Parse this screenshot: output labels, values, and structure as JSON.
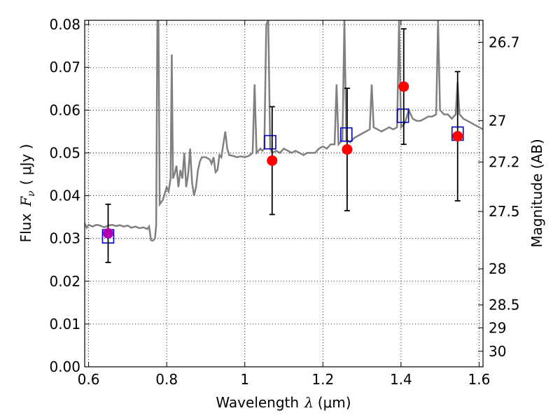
{
  "chart_data": {
    "type": "line",
    "xlabel": "Wavelength",
    "xlabel_symbol": "λ",
    "xlabel_unit": "(μm)",
    "ylabel": "Flux",
    "ylabel_symbol": "F",
    "ylabel_subscript": "ν",
    "ylabel_unit": "( μJy )",
    "y2label": "Magnitude (AB)",
    "xlim": [
      0.59,
      1.61
    ],
    "ylim": [
      0.0,
      0.081
    ],
    "grid": true,
    "x_ticks": [
      {
        "value": 0.6,
        "label": "0.6"
      },
      {
        "value": 0.8,
        "label": "0.8"
      },
      {
        "value": 1.0,
        "label": "1"
      },
      {
        "value": 1.2,
        "label": "1.2"
      },
      {
        "value": 1.4,
        "label": "1.4"
      },
      {
        "value": 1.6,
        "label": "1.6"
      }
    ],
    "y_ticks": [
      {
        "value": 0.0,
        "label": "0.00"
      },
      {
        "value": 0.01,
        "label": "0.01"
      },
      {
        "value": 0.02,
        "label": "0.02"
      },
      {
        "value": 0.03,
        "label": "0.03"
      },
      {
        "value": 0.04,
        "label": "0.04"
      },
      {
        "value": 0.05,
        "label": "0.05"
      },
      {
        "value": 0.06,
        "label": "0.06"
      },
      {
        "value": 0.07,
        "label": "0.07"
      },
      {
        "value": 0.08,
        "label": "0.08"
      }
    ],
    "y2_ticks": [
      {
        "magnitude": 26.7,
        "label": "26.7"
      },
      {
        "magnitude": 27.0,
        "label": "27"
      },
      {
        "magnitude": 27.2,
        "label": "27.2"
      },
      {
        "magnitude": 27.5,
        "label": "27.5"
      },
      {
        "magnitude": 28.0,
        "label": "28"
      },
      {
        "magnitude": 28.5,
        "label": "28.5"
      },
      {
        "magnitude": 29.0,
        "label": "29"
      },
      {
        "magnitude": 30.0,
        "label": "30"
      }
    ],
    "model_spectrum": {
      "color": "#808080",
      "points": [
        [
          0.59,
          0.0335
        ],
        [
          0.595,
          0.0325
        ],
        [
          0.6,
          0.0332
        ],
        [
          0.61,
          0.0328
        ],
        [
          0.62,
          0.0332
        ],
        [
          0.63,
          0.033
        ],
        [
          0.64,
          0.0326
        ],
        [
          0.65,
          0.033
        ],
        [
          0.66,
          0.0332
        ],
        [
          0.67,
          0.0329
        ],
        [
          0.68,
          0.0331
        ],
        [
          0.69,
          0.0328
        ],
        [
          0.7,
          0.033
        ],
        [
          0.71,
          0.0325
        ],
        [
          0.72,
          0.0328
        ],
        [
          0.73,
          0.0324
        ],
        [
          0.74,
          0.0326
        ],
        [
          0.75,
          0.0322
        ],
        [
          0.755,
          0.0328
        ],
        [
          0.76,
          0.0296
        ],
        [
          0.765,
          0.0295
        ],
        [
          0.77,
          0.03
        ],
        [
          0.773,
          0.033
        ],
        [
          0.776,
          0.081
        ],
        [
          0.779,
          0.081
        ],
        [
          0.782,
          0.038
        ],
        [
          0.79,
          0.039
        ],
        [
          0.8,
          0.042
        ],
        [
          0.805,
          0.041
        ],
        [
          0.81,
          0.044
        ],
        [
          0.813,
          0.073
        ],
        [
          0.816,
          0.044
        ],
        [
          0.82,
          0.045
        ],
        [
          0.825,
          0.047
        ],
        [
          0.83,
          0.042
        ],
        [
          0.835,
          0.046
        ],
        [
          0.84,
          0.044
        ],
        [
          0.845,
          0.05
        ],
        [
          0.85,
          0.042
        ],
        [
          0.855,
          0.045
        ],
        [
          0.86,
          0.051
        ],
        [
          0.865,
          0.043
        ],
        [
          0.87,
          0.04
        ],
        [
          0.875,
          0.042
        ],
        [
          0.88,
          0.046
        ],
        [
          0.885,
          0.048
        ],
        [
          0.89,
          0.049
        ],
        [
          0.9,
          0.049
        ],
        [
          0.91,
          0.0485
        ],
        [
          0.915,
          0.0475
        ],
        [
          0.92,
          0.049
        ],
        [
          0.925,
          0.0455
        ],
        [
          0.93,
          0.046
        ],
        [
          0.935,
          0.0495
        ],
        [
          0.94,
          0.049
        ],
        [
          0.945,
          0.052
        ],
        [
          0.95,
          0.055
        ],
        [
          0.955,
          0.051
        ],
        [
          0.96,
          0.0495
        ],
        [
          0.97,
          0.0493
        ],
        [
          0.98,
          0.049
        ],
        [
          0.99,
          0.0492
        ],
        [
          1.0,
          0.049
        ],
        [
          1.01,
          0.0493
        ],
        [
          1.02,
          0.05
        ],
        [
          1.025,
          0.066
        ],
        [
          1.03,
          0.05
        ],
        [
          1.04,
          0.051
        ],
        [
          1.045,
          0.0505
        ],
        [
          1.05,
          0.051
        ],
        [
          1.055,
          0.08
        ],
        [
          1.06,
          0.081
        ],
        [
          1.065,
          0.051
        ],
        [
          1.07,
          0.05
        ],
        [
          1.08,
          0.0505
        ],
        [
          1.09,
          0.05
        ],
        [
          1.1,
          0.051
        ],
        [
          1.11,
          0.0505
        ],
        [
          1.12,
          0.05
        ],
        [
          1.13,
          0.0505
        ],
        [
          1.14,
          0.05
        ],
        [
          1.15,
          0.0495
        ],
        [
          1.16,
          0.05
        ],
        [
          1.17,
          0.05
        ],
        [
          1.18,
          0.05
        ],
        [
          1.19,
          0.051
        ],
        [
          1.2,
          0.0515
        ],
        [
          1.21,
          0.051
        ],
        [
          1.22,
          0.052
        ],
        [
          1.23,
          0.052
        ],
        [
          1.235,
          0.066
        ],
        [
          1.24,
          0.052
        ],
        [
          1.25,
          0.053
        ],
        [
          1.255,
          0.081
        ],
        [
          1.26,
          0.053
        ],
        [
          1.27,
          0.0525
        ],
        [
          1.28,
          0.0535
        ],
        [
          1.29,
          0.054
        ],
        [
          1.3,
          0.0545
        ],
        [
          1.31,
          0.055
        ],
        [
          1.32,
          0.0555
        ],
        [
          1.325,
          0.066
        ],
        [
          1.33,
          0.056
        ],
        [
          1.34,
          0.0555
        ],
        [
          1.35,
          0.055
        ],
        [
          1.36,
          0.0555
        ],
        [
          1.37,
          0.056
        ],
        [
          1.38,
          0.0555
        ],
        [
          1.39,
          0.056
        ],
        [
          1.395,
          0.081
        ],
        [
          1.4,
          0.056
        ],
        [
          1.41,
          0.057
        ],
        [
          1.42,
          0.06
        ],
        [
          1.43,
          0.058
        ],
        [
          1.44,
          0.0575
        ],
        [
          1.45,
          0.0575
        ],
        [
          1.46,
          0.058
        ],
        [
          1.47,
          0.0585
        ],
        [
          1.48,
          0.0585
        ],
        [
          1.49,
          0.059
        ],
        [
          1.495,
          0.081
        ],
        [
          1.5,
          0.06
        ],
        [
          1.51,
          0.059
        ],
        [
          1.52,
          0.059
        ],
        [
          1.53,
          0.058
        ],
        [
          1.54,
          0.059
        ],
        [
          1.545,
          0.0665
        ],
        [
          1.55,
          0.059
        ],
        [
          1.56,
          0.058
        ],
        [
          1.57,
          0.0575
        ],
        [
          1.58,
          0.057
        ],
        [
          1.59,
          0.0565
        ],
        [
          1.6,
          0.056
        ],
        [
          1.61,
          0.0555
        ]
      ]
    },
    "model_photometry": {
      "marker": "open-square",
      "color": "#0000cc",
      "points": [
        {
          "x": 0.65,
          "y": 0.0305
        },
        {
          "x": 1.065,
          "y": 0.0525
        },
        {
          "x": 1.26,
          "y": 0.0543
        },
        {
          "x": 1.405,
          "y": 0.0587
        },
        {
          "x": 1.545,
          "y": 0.0545
        }
      ]
    },
    "observed": {
      "marker": "filled-circle",
      "color": "#ff0000",
      "errorbar_color": "#000000",
      "points": [
        {
          "x": 0.65,
          "y": 0.0312,
          "yerr_low": 0.0068,
          "yerr_high": 0.0068
        },
        {
          "x": 1.07,
          "y": 0.0482,
          "yerr_low": 0.0126,
          "yerr_high": 0.0126
        },
        {
          "x": 1.262,
          "y": 0.0508,
          "yerr_low": 0.0143,
          "yerr_high": 0.0143
        },
        {
          "x": 1.407,
          "y": 0.0655,
          "yerr_low": 0.0135,
          "yerr_high": 0.0135
        },
        {
          "x": 1.545,
          "y": 0.0539,
          "yerr_low": 0.0151,
          "yerr_high": 0.0151
        }
      ]
    },
    "overlap_color": "#b000b0"
  }
}
